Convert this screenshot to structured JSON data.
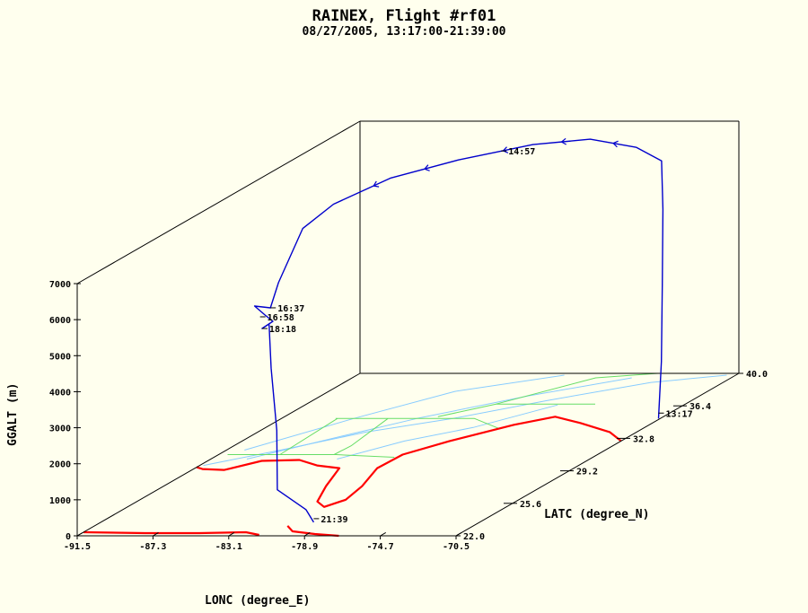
{
  "title": "RAINEX, Flight #rf01",
  "subtitle": "08/27/2005, 13:17:00-21:39:00",
  "chart_data": {
    "type": "line3d",
    "title": "RAINEX, Flight #rf01",
    "subtitle": "08/27/2005, 13:17:00-21:39:00",
    "xlabel": "LONC (degree_E)",
    "ylabel": "LATC (degree_N)",
    "zlabel": "GGALT (m)",
    "xlim": [
      -91.5,
      -70.5
    ],
    "ylim": [
      22.0,
      40.0
    ],
    "zlim": [
      0,
      7000
    ],
    "x_ticks": [
      "-91.5",
      "-87.3",
      "-83.1",
      "-78.9",
      "-74.7",
      "-70.5"
    ],
    "y_ticks": [
      "22.0",
      "25.6",
      "29.2",
      "32.8",
      "36.4",
      "40.0"
    ],
    "z_ticks": [
      "0",
      "1000",
      "2000",
      "3000",
      "4000",
      "5000",
      "6000",
      "7000"
    ],
    "colors": {
      "track": "#0000cc",
      "coastline": "#ff0000",
      "rivers": "#88ccff",
      "borders": "#66dd66",
      "axes": "#000000",
      "background": "#ffffee"
    },
    "time_labels": [
      {
        "text": "13:17",
        "lon": -70.6,
        "lat": 35.0,
        "alt": 150
      },
      {
        "text": "14:57",
        "lon": -81.5,
        "lat": 37.5,
        "alt": 6800
      },
      {
        "text": "16:37",
        "lon": -86.8,
        "lat": 28.9,
        "alt": 4600
      },
      {
        "text": "16:58",
        "lon": -87.2,
        "lat": 28.7,
        "alt": 4400
      },
      {
        "text": "18:18",
        "lon": -87.0,
        "lat": 28.6,
        "alt": 4100
      },
      {
        "text": "21:39",
        "lon": -79.7,
        "lat": 23.5,
        "alt": 100
      }
    ],
    "track": [
      {
        "lon": -70.6,
        "lat": 35.0,
        "alt": 0
      },
      {
        "lon": -70.7,
        "lat": 35.3,
        "alt": 1500
      },
      {
        "lon": -71.0,
        "lat": 35.7,
        "alt": 3500
      },
      {
        "lon": -71.4,
        "lat": 36.2,
        "alt": 5500
      },
      {
        "lon": -72.0,
        "lat": 36.8,
        "alt": 6700
      },
      {
        "lon": -74.0,
        "lat": 37.5,
        "alt": 6900
      },
      {
        "lon": -77.0,
        "lat": 38.0,
        "alt": 7000
      },
      {
        "lon": -80.0,
        "lat": 37.8,
        "alt": 6900
      },
      {
        "lon": -83.0,
        "lat": 36.5,
        "alt": 6800
      },
      {
        "lon": -85.0,
        "lat": 34.5,
        "alt": 6800
      },
      {
        "lon": -86.0,
        "lat": 32.0,
        "alt": 6700
      },
      {
        "lon": -86.4,
        "lat": 30.5,
        "alt": 6400
      },
      {
        "lon": -86.7,
        "lat": 29.3,
        "alt": 5200
      },
      {
        "lon": -86.8,
        "lat": 28.9,
        "alt": 4600
      },
      {
        "lon": -87.5,
        "lat": 28.7,
        "alt": 4700
      },
      {
        "lon": -87.1,
        "lat": 28.9,
        "alt": 4400
      },
      {
        "lon": -86.4,
        "lat": 28.6,
        "alt": 4300
      },
      {
        "lon": -87.0,
        "lat": 28.6,
        "alt": 4100
      },
      {
        "lon": -86.7,
        "lat": 28.7,
        "alt": 4200
      },
      {
        "lon": -86.5,
        "lat": 28.6,
        "alt": 3000
      },
      {
        "lon": -85.4,
        "lat": 27.7,
        "alt": 1500
      },
      {
        "lon": -84.5,
        "lat": 26.7,
        "alt": 100
      },
      {
        "lon": -81.0,
        "lat": 24.5,
        "alt": 100
      },
      {
        "lon": -79.7,
        "lat": 23.5,
        "alt": 0
      }
    ],
    "coastline": [
      [
        [
          -70.5,
          32.5
        ],
        [
          -72.0,
          33.5
        ],
        [
          -74.5,
          34.5
        ],
        [
          -76.5,
          35.2
        ],
        [
          -78.0,
          34.3
        ],
        [
          -80.0,
          32.5
        ],
        [
          -81.3,
          31.0
        ],
        [
          -81.4,
          29.5
        ],
        [
          -80.5,
          27.5
        ],
        [
          -80.1,
          26.0
        ],
        [
          -80.6,
          25.2
        ],
        [
          -81.5,
          25.8
        ],
        [
          -82.5,
          27.5
        ],
        [
          -83.5,
          29.5
        ],
        [
          -85.0,
          29.8
        ],
        [
          -86.5,
          30.4
        ],
        [
          -88.5,
          30.3
        ],
        [
          -89.7,
          29.3
        ],
        [
          -91.0,
          29.4
        ],
        [
          -91.5,
          29.6
        ]
      ],
      [
        [
          -80.8,
          23.1
        ],
        [
          -80.0,
          22.5
        ],
        [
          -78.5,
          22.2
        ],
        [
          -77.0,
          22.0
        ]
      ],
      [
        [
          -91.5,
          22.4
        ],
        [
          -88.0,
          22.3
        ],
        [
          -85.0,
          22.3
        ],
        [
          -82.5,
          22.4
        ],
        [
          -81.5,
          22.1
        ]
      ]
    ],
    "rivers": [
      [
        [
          -91.3,
          29.8
        ],
        [
          -88.5,
          31.5
        ],
        [
          -85.5,
          33.5
        ],
        [
          -82.0,
          35.0
        ],
        [
          -78.5,
          37.0
        ],
        [
          -74.5,
          39.0
        ],
        [
          -71.0,
          39.8
        ]
      ],
      [
        [
          -89.5,
          30.5
        ],
        [
          -86.5,
          33.0
        ],
        [
          -84.0,
          35.0
        ],
        [
          -80.0,
          37.5
        ],
        [
          -76.0,
          39.5
        ]
      ],
      [
        [
          -84.5,
          30.5
        ],
        [
          -82.5,
          32.5
        ],
        [
          -80.0,
          34.0
        ],
        [
          -77.5,
          36.5
        ]
      ],
      [
        [
          -90.5,
          31.5
        ],
        [
          -87.5,
          35.0
        ],
        [
          -84.5,
          38.0
        ],
        [
          -80.0,
          39.8
        ]
      ]
    ],
    "borders": [
      [
        [
          -91.0,
          31.0
        ],
        [
          -85.0,
          31.0
        ],
        [
          -81.5,
          30.7
        ]
      ],
      [
        [
          -88.5,
          35.0
        ],
        [
          -84.0,
          35.0
        ],
        [
          -80.8,
          35.0
        ],
        [
          -78.5,
          33.9
        ]
      ],
      [
        [
          -85.6,
          35.0
        ],
        [
          -85.0,
          32.0
        ],
        [
          -85.1,
          31.0
        ]
      ],
      [
        [
          -88.4,
          35.0
        ],
        [
          -88.1,
          31.0
        ]
      ],
      [
        [
          -83.0,
          35.2
        ],
        [
          -81.0,
          36.6
        ],
        [
          -75.5,
          36.6
        ]
      ],
      [
        [
          -81.0,
          36.6
        ],
        [
          -78.0,
          39.5
        ],
        [
          -75.0,
          40.0
        ]
      ]
    ]
  }
}
